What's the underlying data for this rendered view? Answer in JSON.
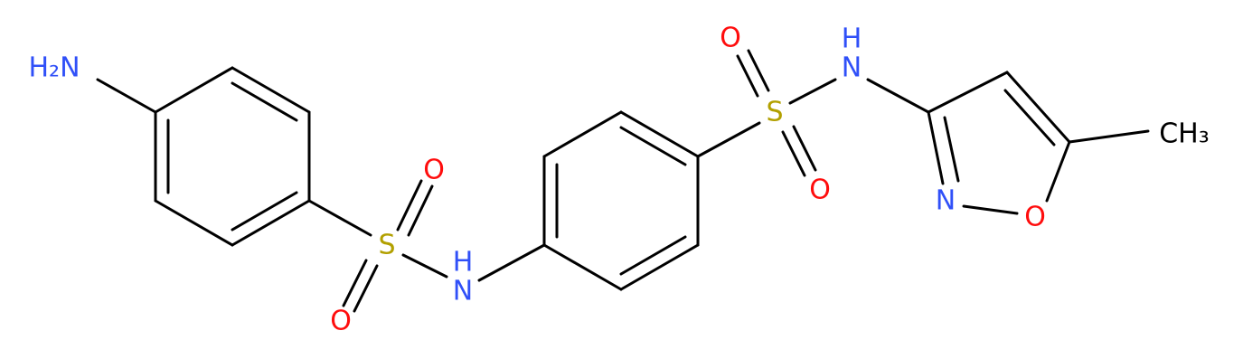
{
  "atoms": [
    {
      "label": "H₂N"
    },
    {
      "label": "S"
    },
    {
      "label": "O"
    },
    {
      "label": "O"
    },
    {
      "label": "H"
    },
    {
      "label": "N"
    },
    {
      "label": "S"
    },
    {
      "label": "O"
    },
    {
      "label": "O"
    },
    {
      "label": "N"
    },
    {
      "label": "H"
    },
    {
      "label": "N"
    },
    {
      "label": "O"
    },
    {
      "label": "CH₃"
    }
  ]
}
